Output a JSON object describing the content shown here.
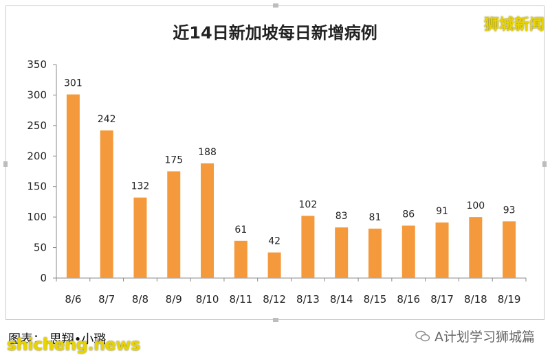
{
  "chart_data": {
    "type": "bar",
    "title": "近14日新加坡每日新增病例",
    "categories": [
      "8/6",
      "8/7",
      "8/8",
      "8/9",
      "8/10",
      "8/11",
      "8/12",
      "8/13",
      "8/14",
      "8/15",
      "8/16",
      "8/17",
      "8/18",
      "8/19"
    ],
    "values": [
      301,
      242,
      132,
      175,
      188,
      61,
      42,
      102,
      83,
      81,
      86,
      91,
      100,
      93
    ],
    "ylim": [
      0,
      350
    ],
    "yticks": [
      0,
      50,
      100,
      150,
      200,
      250,
      300,
      350
    ],
    "grid": false,
    "bar_color": "#f59a3c",
    "data_labels": true
  },
  "caption": "图表： 思翔•小璐",
  "watermarks": {
    "brand": "狮城新闻",
    "domain": "shicheng.news",
    "account": "A计划学习狮城篇"
  },
  "colors": {
    "watermark": "#e8d400"
  }
}
